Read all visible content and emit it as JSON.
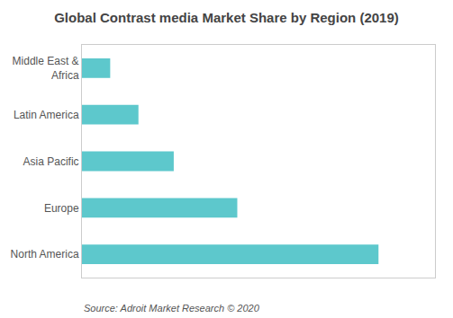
{
  "chart_data": {
    "type": "bar",
    "orientation": "horizontal",
    "title": "Global Contrast media Market Share by Region (2019)",
    "categories": [
      "North America",
      "Europe",
      "Asia Pacific",
      "Latin America",
      "Middle East &\n  Africa"
    ],
    "values": [
      42,
      22,
      13,
      8,
      4
    ],
    "color": "#5DC8CC",
    "xlim": [
      0,
      50
    ],
    "xticks": [],
    "tick_labels": "y",
    "grid": false,
    "annotations": [
      "Source: Adroit Market Research © 2020"
    ]
  }
}
